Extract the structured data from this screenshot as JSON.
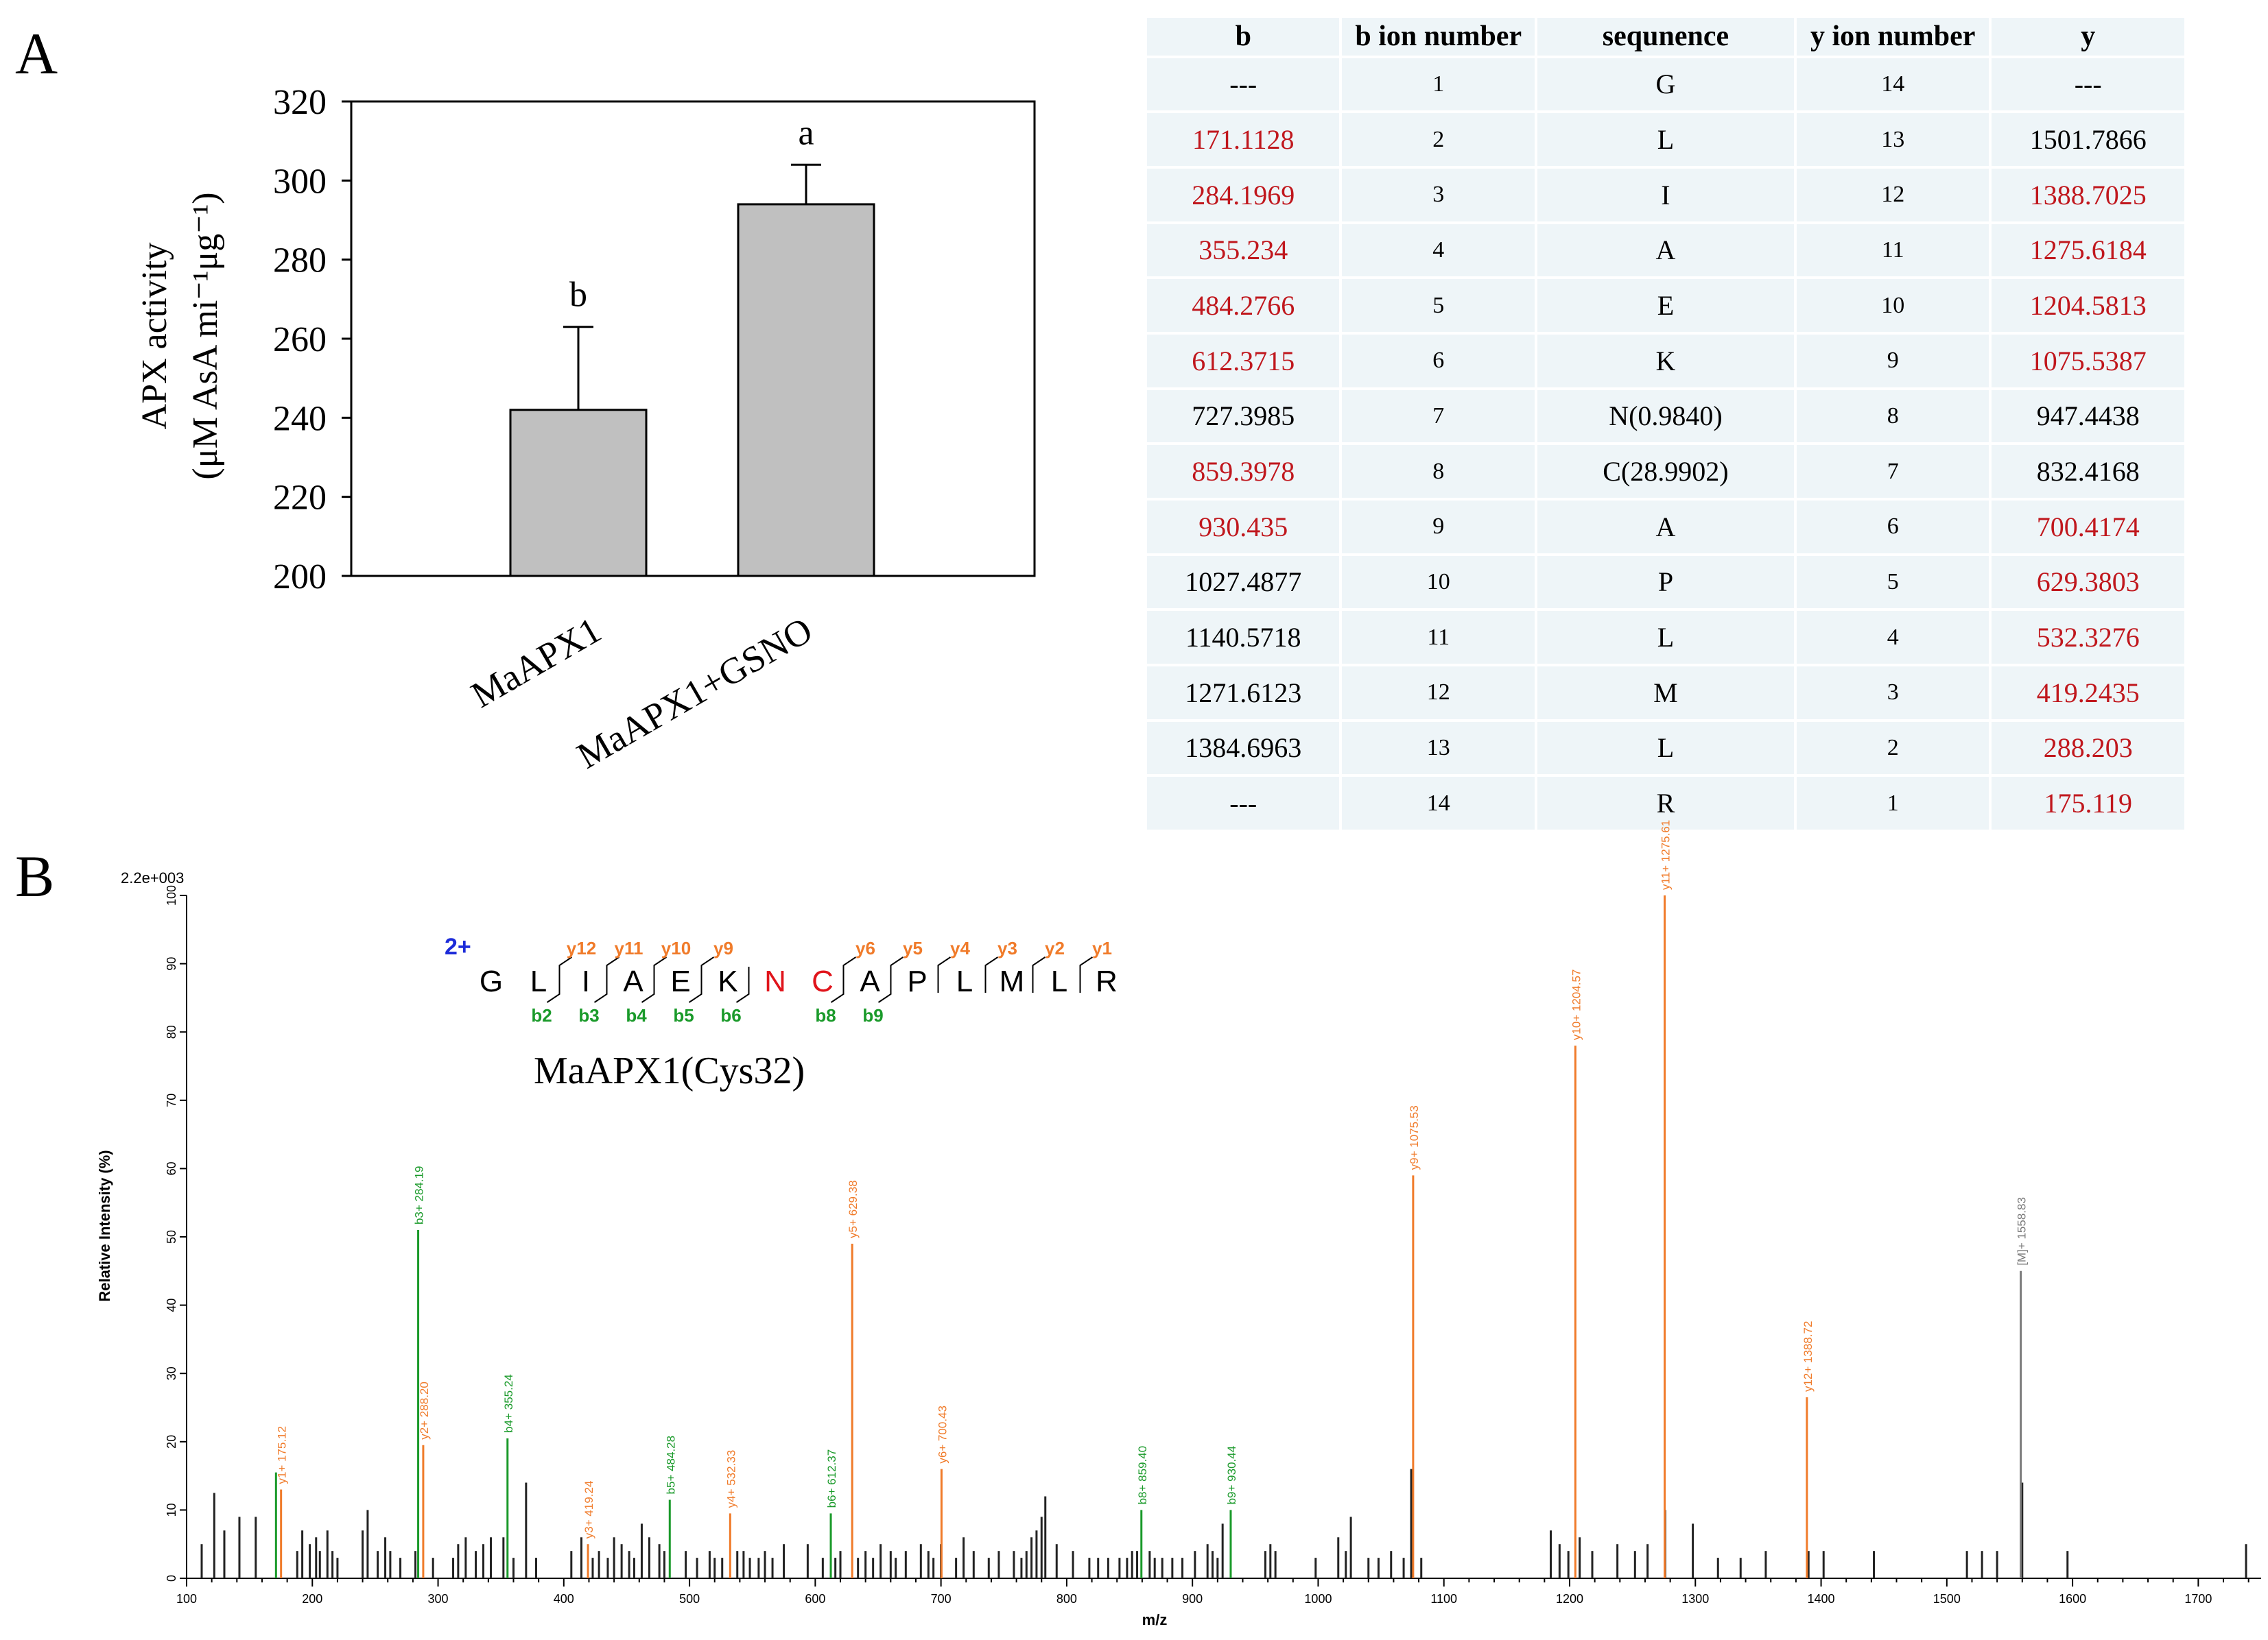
{
  "panel_a": {
    "label": "A",
    "chart_data": {
      "type": "bar",
      "categories": [
        "MaAPX1",
        "MaAPX1+GSNO"
      ],
      "values": [
        242,
        294
      ],
      "errors": [
        21,
        10
      ],
      "significance": [
        "b",
        "a"
      ],
      "ylabel_line1": "APX activity",
      "ylabel_line2": "(μM AsA mi⁻¹μg⁻¹)",
      "ylim": [
        200,
        320
      ],
      "yticks": [
        "200",
        "220",
        "240",
        "260",
        "280",
        "300",
        "320"
      ],
      "bar_color": "#c0c0c0"
    }
  },
  "ion_table": {
    "headers": [
      "b",
      "b ion number",
      "sequnence",
      "y ion number",
      "y"
    ],
    "rows": [
      {
        "b": "---",
        "b_red": false,
        "bn": "1",
        "seq": "G",
        "yn": "14",
        "y": "---",
        "y_red": false
      },
      {
        "b": "171.1128",
        "b_red": true,
        "bn": "2",
        "seq": "L",
        "yn": "13",
        "y": "1501.7866",
        "y_red": false
      },
      {
        "b": "284.1969",
        "b_red": true,
        "bn": "3",
        "seq": "I",
        "yn": "12",
        "y": "1388.7025",
        "y_red": true
      },
      {
        "b": "355.234",
        "b_red": true,
        "bn": "4",
        "seq": "A",
        "yn": "11",
        "y": "1275.6184",
        "y_red": true
      },
      {
        "b": "484.2766",
        "b_red": true,
        "bn": "5",
        "seq": "E",
        "yn": "10",
        "y": "1204.5813",
        "y_red": true
      },
      {
        "b": "612.3715",
        "b_red": true,
        "bn": "6",
        "seq": "K",
        "yn": "9",
        "y": "1075.5387",
        "y_red": true
      },
      {
        "b": "727.3985",
        "b_red": false,
        "bn": "7",
        "seq": "N(0.9840)",
        "yn": "8",
        "y": "947.4438",
        "y_red": false
      },
      {
        "b": "859.3978",
        "b_red": true,
        "bn": "8",
        "seq": "C(28.9902)",
        "yn": "7",
        "y": "832.4168",
        "y_red": false
      },
      {
        "b": "930.435",
        "b_red": true,
        "bn": "9",
        "seq": "A",
        "yn": "6",
        "y": "700.4174",
        "y_red": true
      },
      {
        "b": "1027.4877",
        "b_red": false,
        "bn": "10",
        "seq": "P",
        "yn": "5",
        "y": "629.3803",
        "y_red": true
      },
      {
        "b": "1140.5718",
        "b_red": false,
        "bn": "11",
        "seq": "L",
        "yn": "4",
        "y": "532.3276",
        "y_red": true
      },
      {
        "b": "1271.6123",
        "b_red": false,
        "bn": "12",
        "seq": "M",
        "yn": "3",
        "y": "419.2435",
        "y_red": true
      },
      {
        "b": "1384.6963",
        "b_red": false,
        "bn": "13",
        "seq": "L",
        "yn": "2",
        "y": "288.203",
        "y_red": true
      },
      {
        "b": "---",
        "b_red": false,
        "bn": "14",
        "seq": "R",
        "yn": "1",
        "y": "175.119",
        "y_red": true
      }
    ]
  },
  "panel_b": {
    "label": "B",
    "chart_data": {
      "type": "bar",
      "subtype": "mass-spectrum",
      "scale_label": "2.2e+003",
      "xlabel": "m/z",
      "ylabel": "Relative  Intensity (%)",
      "xlim": [
        100,
        1750
      ],
      "ylim": [
        0,
        100
      ],
      "xticks": [
        "100",
        "200",
        "300",
        "400",
        "500",
        "600",
        "700",
        "800",
        "900",
        "1000",
        "1100",
        "1200",
        "1300",
        "1400",
        "1500",
        "1600",
        "1700"
      ],
      "yticks": [
        "0",
        "10",
        "20",
        "30",
        "40",
        "50",
        "60",
        "70",
        "80",
        "90",
        "100"
      ],
      "charge": "2+",
      "peptide": [
        "G",
        "L",
        "I",
        "A",
        "E",
        "K",
        "N",
        "C",
        "A",
        "P",
        "L",
        "M",
        "L",
        "R"
      ],
      "modified_residues": [
        6,
        7
      ],
      "y_ion_labels": [
        "y12",
        "y11",
        "y10",
        "y9",
        "y6",
        "y5",
        "y4",
        "y3",
        "y2",
        "y1"
      ],
      "b_ion_labels": [
        "b2",
        "b3",
        "b4",
        "b5",
        "b6",
        "b8",
        "b9"
      ],
      "peptide_caption": "MaAPX1(Cys32)",
      "annotated_peaks": [
        {
          "mz": 171.11,
          "intensity": 15.5,
          "ion": "b",
          "label": ""
        },
        {
          "mz": 175.12,
          "intensity": 13,
          "ion": "y",
          "label": "y1+ 175.12"
        },
        {
          "mz": 284.19,
          "intensity": 51,
          "ion": "b",
          "label": "b3+ 284.19"
        },
        {
          "mz": 288.2,
          "intensity": 19.5,
          "ion": "y",
          "label": "y2+ 288.20"
        },
        {
          "mz": 355.24,
          "intensity": 20.5,
          "ion": "b",
          "label": "b4+ 355.24"
        },
        {
          "mz": 419.24,
          "intensity": 5,
          "ion": "y",
          "label": "y3+ 419.24"
        },
        {
          "mz": 484.28,
          "intensity": 11.5,
          "ion": "b",
          "label": "b5+ 484.28"
        },
        {
          "mz": 532.33,
          "intensity": 9.5,
          "ion": "y",
          "label": "y4+ 532.33"
        },
        {
          "mz": 612.37,
          "intensity": 9.5,
          "ion": "b",
          "label": "b6+ 612.37"
        },
        {
          "mz": 629.38,
          "intensity": 49,
          "ion": "y",
          "label": "y5+ 629.38"
        },
        {
          "mz": 700.43,
          "intensity": 16,
          "ion": "y",
          "label": "y6+ 700.43"
        },
        {
          "mz": 859.4,
          "intensity": 10,
          "ion": "b",
          "label": "b8+ 859.40"
        },
        {
          "mz": 930.44,
          "intensity": 10,
          "ion": "b",
          "label": "b9+ 930.44"
        },
        {
          "mz": 1075.53,
          "intensity": 59,
          "ion": "y",
          "label": "y9+ 1075.53"
        },
        {
          "mz": 1204.57,
          "intensity": 78,
          "ion": "y",
          "label": "y10+ 1204.57"
        },
        {
          "mz": 1275.61,
          "intensity": 100,
          "ion": "y",
          "label": "y11+ 1275.61"
        },
        {
          "mz": 1388.72,
          "intensity": 26.5,
          "ion": "y",
          "label": "y12+ 1388.72"
        },
        {
          "mz": 1558.83,
          "intensity": 45,
          "ion": "M",
          "label": "[M]+ 1558.83"
        }
      ],
      "background_peaks": [
        [
          112,
          5
        ],
        [
          122,
          12.5
        ],
        [
          130,
          7
        ],
        [
          142,
          9
        ],
        [
          155,
          9
        ],
        [
          188,
          4
        ],
        [
          192,
          7
        ],
        [
          198,
          5
        ],
        [
          203,
          6
        ],
        [
          206,
          4
        ],
        [
          212,
          7
        ],
        [
          216,
          4
        ],
        [
          220,
          3
        ],
        [
          240,
          7
        ],
        [
          244,
          10
        ],
        [
          252,
          4
        ],
        [
          258,
          6
        ],
        [
          262,
          4
        ],
        [
          270,
          3
        ],
        [
          282,
          4
        ],
        [
          296,
          3
        ],
        [
          312,
          3
        ],
        [
          316,
          5
        ],
        [
          322,
          6
        ],
        [
          330,
          4
        ],
        [
          336,
          5
        ],
        [
          342,
          6
        ],
        [
          352,
          6
        ],
        [
          360,
          3
        ],
        [
          370,
          14
        ],
        [
          378,
          3
        ],
        [
          406,
          4
        ],
        [
          414,
          6
        ],
        [
          423,
          3
        ],
        [
          428,
          4
        ],
        [
          435,
          3
        ],
        [
          440,
          6
        ],
        [
          446,
          5
        ],
        [
          452,
          4
        ],
        [
          456,
          3
        ],
        [
          462,
          8
        ],
        [
          468,
          6
        ],
        [
          476,
          5
        ],
        [
          480,
          4
        ],
        [
          497,
          4
        ],
        [
          506,
          3
        ],
        [
          516,
          4
        ],
        [
          520,
          3
        ],
        [
          526,
          3
        ],
        [
          538,
          4
        ],
        [
          543,
          4
        ],
        [
          548,
          3
        ],
        [
          555,
          3
        ],
        [
          560,
          4
        ],
        [
          566,
          3
        ],
        [
          575,
          5
        ],
        [
          594,
          5
        ],
        [
          606,
          3
        ],
        [
          616,
          3
        ],
        [
          620,
          4
        ],
        [
          634,
          3
        ],
        [
          640,
          4
        ],
        [
          646,
          3
        ],
        [
          652,
          5
        ],
        [
          660,
          4
        ],
        [
          664,
          3
        ],
        [
          672,
          4
        ],
        [
          684,
          5
        ],
        [
          690,
          4
        ],
        [
          694,
          3
        ],
        [
          700,
          5
        ],
        [
          712,
          3
        ],
        [
          718,
          6
        ],
        [
          726,
          4
        ],
        [
          738,
          3
        ],
        [
          746,
          4
        ],
        [
          758,
          4
        ],
        [
          764,
          3
        ],
        [
          768,
          4
        ],
        [
          772,
          6
        ],
        [
          776,
          7
        ],
        [
          780,
          9
        ],
        [
          783,
          12
        ],
        [
          792,
          5
        ],
        [
          805,
          4
        ],
        [
          818,
          3
        ],
        [
          825,
          3
        ],
        [
          833,
          3
        ],
        [
          842,
          3
        ],
        [
          848,
          3
        ],
        [
          852,
          4
        ],
        [
          856,
          4
        ],
        [
          866,
          4
        ],
        [
          870,
          3
        ],
        [
          876,
          3
        ],
        [
          884,
          3
        ],
        [
          892,
          3
        ],
        [
          902,
          4
        ],
        [
          912,
          5
        ],
        [
          916,
          4
        ],
        [
          920,
          3
        ],
        [
          924,
          8
        ],
        [
          958,
          4
        ],
        [
          962,
          5
        ],
        [
          966,
          4
        ],
        [
          998,
          3
        ],
        [
          1016,
          6
        ],
        [
          1022,
          4
        ],
        [
          1026,
          9
        ],
        [
          1040,
          3
        ],
        [
          1048,
          3
        ],
        [
          1058,
          4
        ],
        [
          1068,
          3
        ],
        [
          1074,
          16
        ],
        [
          1082,
          3
        ],
        [
          1185,
          7
        ],
        [
          1192,
          5
        ],
        [
          1199,
          4
        ],
        [
          1208,
          6
        ],
        [
          1218,
          4
        ],
        [
          1238,
          5
        ],
        [
          1252,
          4
        ],
        [
          1262,
          5
        ],
        [
          1276,
          10
        ],
        [
          1298,
          8
        ],
        [
          1318,
          3
        ],
        [
          1336,
          3
        ],
        [
          1356,
          4
        ],
        [
          1390,
          4
        ],
        [
          1402,
          4
        ],
        [
          1442,
          4
        ],
        [
          1516,
          4
        ],
        [
          1528,
          4
        ],
        [
          1540,
          4
        ],
        [
          1560,
          14
        ],
        [
          1596,
          4
        ],
        [
          1738,
          5
        ]
      ]
    }
  }
}
